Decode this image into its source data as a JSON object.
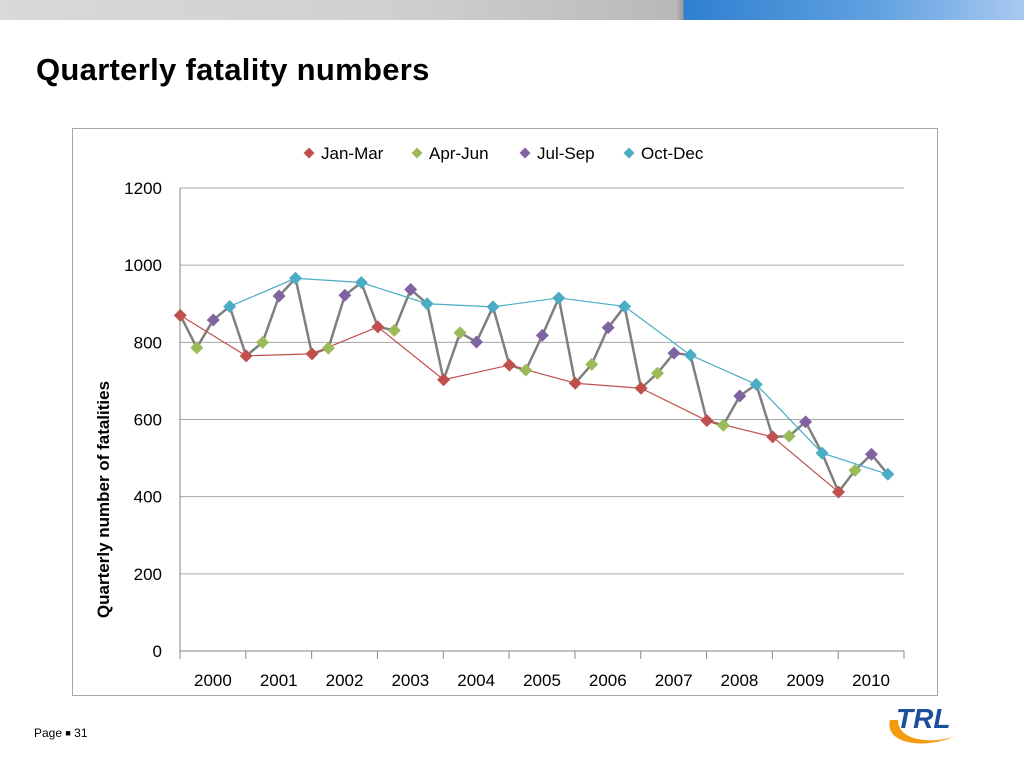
{
  "slide": {
    "title": "Quarterly fatality numbers",
    "page_label": "Page",
    "page_number": "31",
    "logo_text": "TRL"
  },
  "colors": {
    "jan_mar": "#c0504d",
    "apr_jun": "#9bbb59",
    "jul_sep": "#8064a2",
    "oct_dec": "#4bacc6",
    "connector": "#7f7f7f",
    "logo_blue": "#1b4f9c",
    "logo_orange": "#f39c12"
  },
  "chart_data": {
    "type": "line",
    "title": "",
    "ylabel": "Quarterly number of fatalities",
    "xlabel": "",
    "ylim": [
      0,
      1200
    ],
    "yticks": [
      0,
      200,
      400,
      600,
      800,
      1000,
      1200
    ],
    "categories": [
      "2000",
      "2001",
      "2002",
      "2003",
      "2004",
      "2005",
      "2006",
      "2007",
      "2008",
      "2009",
      "2010"
    ],
    "legend_position": "top",
    "grid": true,
    "all_quarters": [
      870,
      786,
      858,
      893,
      765,
      800,
      920,
      966,
      770,
      785,
      922,
      955,
      840,
      831,
      937,
      900,
      703,
      825,
      801,
      892,
      741,
      728,
      818,
      915,
      694,
      743,
      838,
      893,
      681,
      720,
      772,
      767,
      597,
      585,
      661,
      691,
      555,
      557,
      594,
      513,
      412,
      468,
      510,
      458
    ],
    "series": [
      {
        "name": "Jan-Mar",
        "values": [
          870,
          765,
          770,
          840,
          703,
          741,
          694,
          681,
          597,
          555,
          412
        ]
      },
      {
        "name": "Apr-Jun",
        "values": [
          786,
          800,
          785,
          831,
          825,
          728,
          743,
          720,
          585,
          557,
          468
        ]
      },
      {
        "name": "Jul-Sep",
        "values": [
          858,
          920,
          922,
          937,
          801,
          818,
          838,
          772,
          661,
          594,
          510
        ]
      },
      {
        "name": "Oct-Dec",
        "values": [
          893,
          966,
          955,
          900,
          892,
          915,
          893,
          767,
          691,
          513,
          458
        ]
      }
    ]
  }
}
